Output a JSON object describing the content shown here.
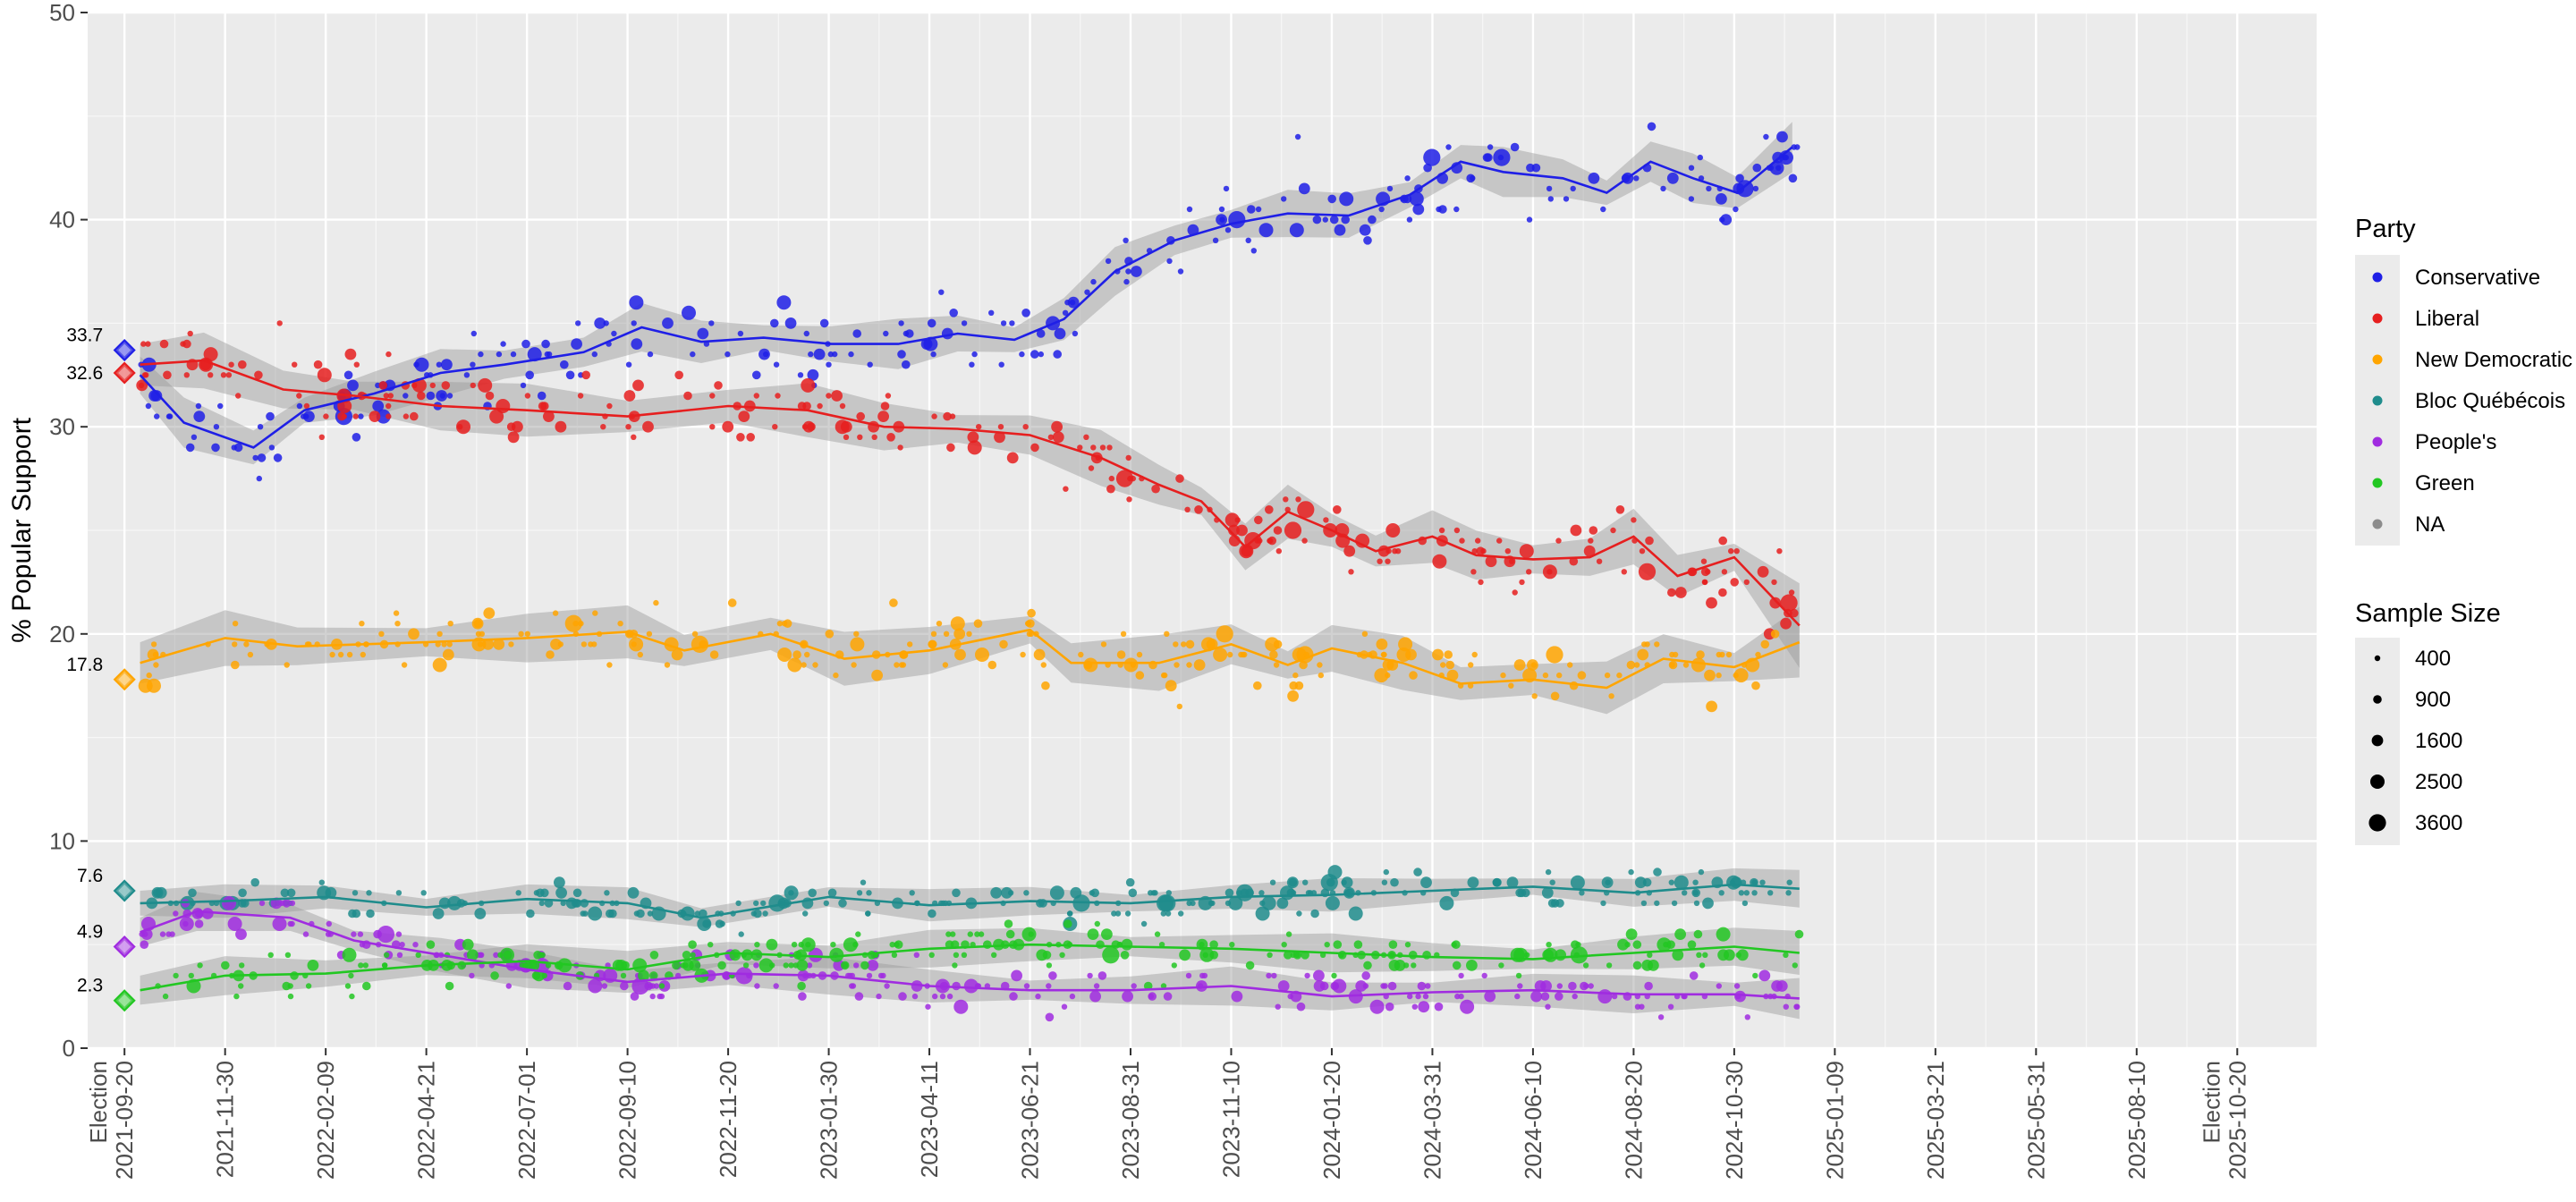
{
  "chart_data": {
    "type": "scatter",
    "title": "",
    "xlabel": "",
    "ylabel": "% Popular Support",
    "ylim": [
      0,
      50
    ],
    "yticks": [
      0,
      10,
      20,
      30,
      40,
      50
    ],
    "xlim": [
      "2021-08-25",
      "2025-12-15"
    ],
    "xticks": [
      {
        "date": "2021-09-20",
        "label": "2021-09-20",
        "prefix": "Election"
      },
      {
        "date": "2021-11-30",
        "label": "2021-11-30"
      },
      {
        "date": "2022-02-09",
        "label": "2022-02-09"
      },
      {
        "date": "2022-04-21",
        "label": "2022-04-21"
      },
      {
        "date": "2022-07-01",
        "label": "2022-07-01"
      },
      {
        "date": "2022-09-10",
        "label": "2022-09-10"
      },
      {
        "date": "2022-11-20",
        "label": "2022-11-20"
      },
      {
        "date": "2023-01-30",
        "label": "2023-01-30"
      },
      {
        "date": "2023-04-11",
        "label": "2023-04-11"
      },
      {
        "date": "2023-06-21",
        "label": "2023-06-21"
      },
      {
        "date": "2023-08-31",
        "label": "2023-08-31"
      },
      {
        "date": "2023-11-10",
        "label": "2023-11-10"
      },
      {
        "date": "2024-01-20",
        "label": "2024-01-20"
      },
      {
        "date": "2024-03-31",
        "label": "2024-03-31"
      },
      {
        "date": "2024-06-10",
        "label": "2024-06-10"
      },
      {
        "date": "2024-08-20",
        "label": "2024-08-20"
      },
      {
        "date": "2024-10-30",
        "label": "2024-10-30"
      },
      {
        "date": "2025-01-09",
        "label": "2025-01-09"
      },
      {
        "date": "2025-03-21",
        "label": "2025-03-21"
      },
      {
        "date": "2025-05-31",
        "label": "2025-05-31"
      },
      {
        "date": "2025-08-10",
        "label": "2025-08-10"
      },
      {
        "date": "2025-10-20",
        "label": "2025-10-20",
        "prefix": "Election"
      }
    ],
    "grid": true,
    "legend_placement": "right",
    "election_results": [
      {
        "party": "Conservative",
        "value": 33.7,
        "label": "33.7"
      },
      {
        "party": "Liberal",
        "value": 32.6,
        "label": "32.6"
      },
      {
        "party": "New Democratic",
        "value": 17.8,
        "label": "17.8"
      },
      {
        "party": "Bloc Québécois",
        "value": 7.6,
        "label": "7.6"
      },
      {
        "party": "People's",
        "value": 4.9,
        "label": "4.9"
      },
      {
        "party": "Green",
        "value": 2.3,
        "label": "2.3"
      }
    ],
    "series": [
      {
        "name": "Conservative",
        "color": "#1f1fe6",
        "trend": [
          [
            "2021-10-01",
            32.5
          ],
          [
            "2021-11-01",
            30.2
          ],
          [
            "2021-12-20",
            29.0
          ],
          [
            "2022-01-25",
            30.8
          ],
          [
            "2022-03-15",
            31.6
          ],
          [
            "2022-05-01",
            32.6
          ],
          [
            "2022-06-15",
            33.0
          ],
          [
            "2022-08-10",
            33.6
          ],
          [
            "2022-09-20",
            34.8
          ],
          [
            "2022-11-01",
            34.1
          ],
          [
            "2022-12-15",
            34.3
          ],
          [
            "2023-02-01",
            34.0
          ],
          [
            "2023-03-20",
            34.0
          ],
          [
            "2023-05-01",
            34.5
          ],
          [
            "2023-06-10",
            34.2
          ],
          [
            "2023-07-15",
            35.2
          ],
          [
            "2023-08-20",
            37.5
          ],
          [
            "2023-10-01",
            39.0
          ],
          [
            "2023-11-10",
            39.8
          ],
          [
            "2023-12-20",
            40.3
          ],
          [
            "2024-02-01",
            40.2
          ],
          [
            "2024-03-15",
            41.2
          ],
          [
            "2024-04-20",
            42.8
          ],
          [
            "2024-05-20",
            42.3
          ],
          [
            "2024-07-01",
            42.0
          ],
          [
            "2024-08-01",
            41.3
          ],
          [
            "2024-09-01",
            42.8
          ],
          [
            "2024-10-01",
            42.0
          ],
          [
            "2024-11-01",
            41.3
          ],
          [
            "2024-12-10",
            43.5
          ]
        ],
        "band": 0.9
      },
      {
        "name": "Liberal",
        "color": "#e61f1f",
        "trend": [
          [
            "2021-10-01",
            33.0
          ],
          [
            "2021-11-15",
            33.2
          ],
          [
            "2022-01-10",
            31.8
          ],
          [
            "2022-03-01",
            31.5
          ],
          [
            "2022-05-01",
            31.0
          ],
          [
            "2022-07-01",
            30.8
          ],
          [
            "2022-09-10",
            30.5
          ],
          [
            "2022-11-20",
            31.0
          ],
          [
            "2023-01-15",
            30.8
          ],
          [
            "2023-03-10",
            30.0
          ],
          [
            "2023-05-01",
            29.9
          ],
          [
            "2023-06-21",
            29.6
          ],
          [
            "2023-08-10",
            28.5
          ],
          [
            "2023-09-20",
            27.2
          ],
          [
            "2023-10-20",
            26.4
          ],
          [
            "2023-11-20",
            24.2
          ],
          [
            "2023-12-20",
            25.9
          ],
          [
            "2024-01-20",
            25.0
          ],
          [
            "2024-02-20",
            24.0
          ],
          [
            "2024-03-31",
            24.7
          ],
          [
            "2024-05-01",
            23.8
          ],
          [
            "2024-06-10",
            23.6
          ],
          [
            "2024-07-20",
            23.7
          ],
          [
            "2024-08-20",
            24.7
          ],
          [
            "2024-09-20",
            22.8
          ],
          [
            "2024-10-30",
            23.7
          ],
          [
            "2024-12-15",
            20.4
          ]
        ],
        "band": 1.0
      },
      {
        "name": "New Democratic",
        "color": "#ffa500",
        "trend": [
          [
            "2021-10-01",
            18.6
          ],
          [
            "2021-11-30",
            19.8
          ],
          [
            "2022-01-20",
            19.4
          ],
          [
            "2022-04-21",
            19.6
          ],
          [
            "2022-07-01",
            19.8
          ],
          [
            "2022-09-10",
            20.1
          ],
          [
            "2022-10-20",
            19.2
          ],
          [
            "2022-12-20",
            20.0
          ],
          [
            "2023-02-10",
            18.8
          ],
          [
            "2023-04-11",
            19.2
          ],
          [
            "2023-06-21",
            20.2
          ],
          [
            "2023-07-20",
            18.6
          ],
          [
            "2023-09-20",
            18.6
          ],
          [
            "2023-11-10",
            19.5
          ],
          [
            "2023-12-20",
            18.5
          ],
          [
            "2024-01-20",
            19.3
          ],
          [
            "2024-03-10",
            18.6
          ],
          [
            "2024-04-20",
            17.6
          ],
          [
            "2024-06-10",
            17.8
          ],
          [
            "2024-08-01",
            17.4
          ],
          [
            "2024-09-10",
            18.8
          ],
          [
            "2024-10-30",
            18.4
          ],
          [
            "2024-12-15",
            19.6
          ]
        ],
        "band": 1.0
      },
      {
        "name": "Bloc Québécois",
        "color": "#1f8c8c",
        "trend": [
          [
            "2021-10-01",
            7.0
          ],
          [
            "2021-11-30",
            7.1
          ],
          [
            "2022-02-09",
            7.3
          ],
          [
            "2022-04-21",
            6.8
          ],
          [
            "2022-07-01",
            7.2
          ],
          [
            "2022-09-10",
            7.0
          ],
          [
            "2022-11-01",
            6.3
          ],
          [
            "2023-01-30",
            7.3
          ],
          [
            "2023-04-11",
            6.9
          ],
          [
            "2023-06-21",
            7.1
          ],
          [
            "2023-08-31",
            7.0
          ],
          [
            "2023-11-10",
            7.3
          ],
          [
            "2024-01-20",
            7.4
          ],
          [
            "2024-03-31",
            7.6
          ],
          [
            "2024-06-10",
            7.8
          ],
          [
            "2024-08-20",
            7.5
          ],
          [
            "2024-10-30",
            7.9
          ],
          [
            "2024-12-15",
            7.7
          ]
        ],
        "band": 0.6
      },
      {
        "name": "People's",
        "color": "#a02ce0",
        "trend": [
          [
            "2021-10-01",
            5.6
          ],
          [
            "2021-11-10",
            6.6
          ],
          [
            "2022-01-15",
            6.3
          ],
          [
            "2022-03-01",
            5.2
          ],
          [
            "2022-05-01",
            4.5
          ],
          [
            "2022-07-01",
            3.8
          ],
          [
            "2022-09-10",
            3.2
          ],
          [
            "2022-11-20",
            3.6
          ],
          [
            "2023-01-30",
            3.5
          ],
          [
            "2023-04-11",
            3.0
          ],
          [
            "2023-06-21",
            2.8
          ],
          [
            "2023-08-31",
            2.8
          ],
          [
            "2023-11-10",
            3.0
          ],
          [
            "2024-01-20",
            2.5
          ],
          [
            "2024-03-31",
            2.7
          ],
          [
            "2024-06-10",
            2.8
          ],
          [
            "2024-08-20",
            2.6
          ],
          [
            "2024-10-30",
            2.6
          ],
          [
            "2024-12-15",
            2.4
          ]
        ],
        "band": 0.7
      },
      {
        "name": "Green",
        "color": "#22c722",
        "trend": [
          [
            "2021-10-01",
            2.8
          ],
          [
            "2021-11-30",
            3.5
          ],
          [
            "2022-02-09",
            3.6
          ],
          [
            "2022-04-21",
            4.0
          ],
          [
            "2022-07-01",
            4.2
          ],
          [
            "2022-09-10",
            3.8
          ],
          [
            "2022-11-20",
            4.6
          ],
          [
            "2023-01-30",
            4.4
          ],
          [
            "2023-04-11",
            4.8
          ],
          [
            "2023-06-21",
            5.0
          ],
          [
            "2023-08-31",
            4.9
          ],
          [
            "2023-11-10",
            4.8
          ],
          [
            "2024-01-20",
            4.6
          ],
          [
            "2024-03-31",
            4.4
          ],
          [
            "2024-06-10",
            4.3
          ],
          [
            "2024-08-20",
            4.6
          ],
          [
            "2024-10-30",
            4.9
          ],
          [
            "2024-12-15",
            4.6
          ]
        ],
        "band": 0.7
      }
    ]
  },
  "legend": {
    "party_title": "Party",
    "party_items": [
      {
        "label": "Conservative",
        "color": "#1f1fe6"
      },
      {
        "label": "Liberal",
        "color": "#e61f1f"
      },
      {
        "label": "New Democratic",
        "color": "#ffa500"
      },
      {
        "label": "Bloc Québécois",
        "color": "#1f8c8c"
      },
      {
        "label": "People's",
        "color": "#a02ce0"
      },
      {
        "label": "Green",
        "color": "#22c722"
      },
      {
        "label": "NA",
        "color": "#8c8c8c"
      }
    ],
    "size_title": "Sample Size",
    "size_items": [
      {
        "label": "400",
        "n": 400
      },
      {
        "label": "900",
        "n": 900
      },
      {
        "label": "1600",
        "n": 1600
      },
      {
        "label": "2500",
        "n": 2500
      },
      {
        "label": "3600",
        "n": 3600
      }
    ]
  }
}
